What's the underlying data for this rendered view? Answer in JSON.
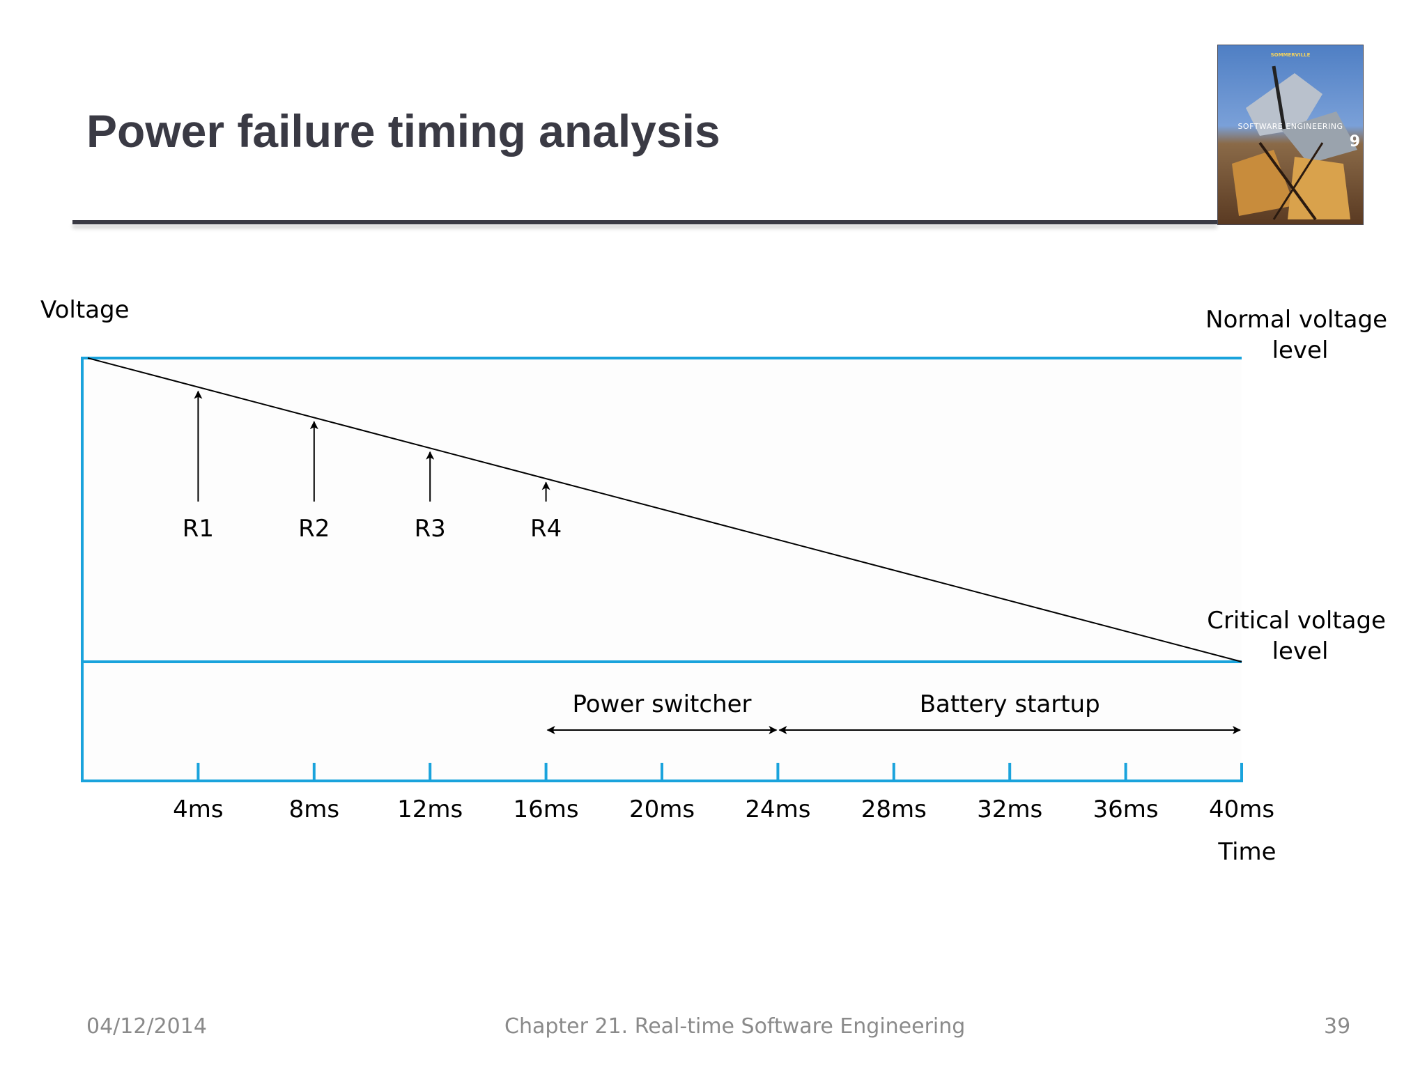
{
  "slide": {
    "title": "Power failure timing analysis",
    "book_cover": {
      "top_text": "SOMMERVILLE",
      "label": "SOFTWARE ENGINEERING",
      "edition": "9"
    }
  },
  "diagram": {
    "y_label": "Voltage",
    "x_label": "Time",
    "normal_level": [
      "Normal voltage",
      "level"
    ],
    "critical_level": [
      "Critical voltage",
      "level"
    ],
    "time_ticks": [
      "4ms",
      "8ms",
      "12ms",
      "16ms",
      "20ms",
      "24ms",
      "28ms",
      "32ms",
      "36ms",
      "40ms"
    ],
    "readings": [
      {
        "label": "R1",
        "time_ms": 4
      },
      {
        "label": "R2",
        "time_ms": 8
      },
      {
        "label": "R3",
        "time_ms": 12
      },
      {
        "label": "R4",
        "time_ms": 16
      }
    ],
    "intervals": [
      {
        "label": "Power switcher",
        "start_ms": 16,
        "end_ms": 24
      },
      {
        "label": "Battery startup",
        "start_ms": 24,
        "end_ms": 40
      }
    ],
    "voltage_drop": {
      "start_ms": 0,
      "end_ms": 40
    },
    "colors": {
      "axis": "#1aa3dc",
      "line": "#000000",
      "fill": "#fdfdfd"
    }
  },
  "footer": {
    "date": "04/12/2014",
    "chapter": "Chapter 21. Real-time Software Engineering",
    "page": "39"
  }
}
